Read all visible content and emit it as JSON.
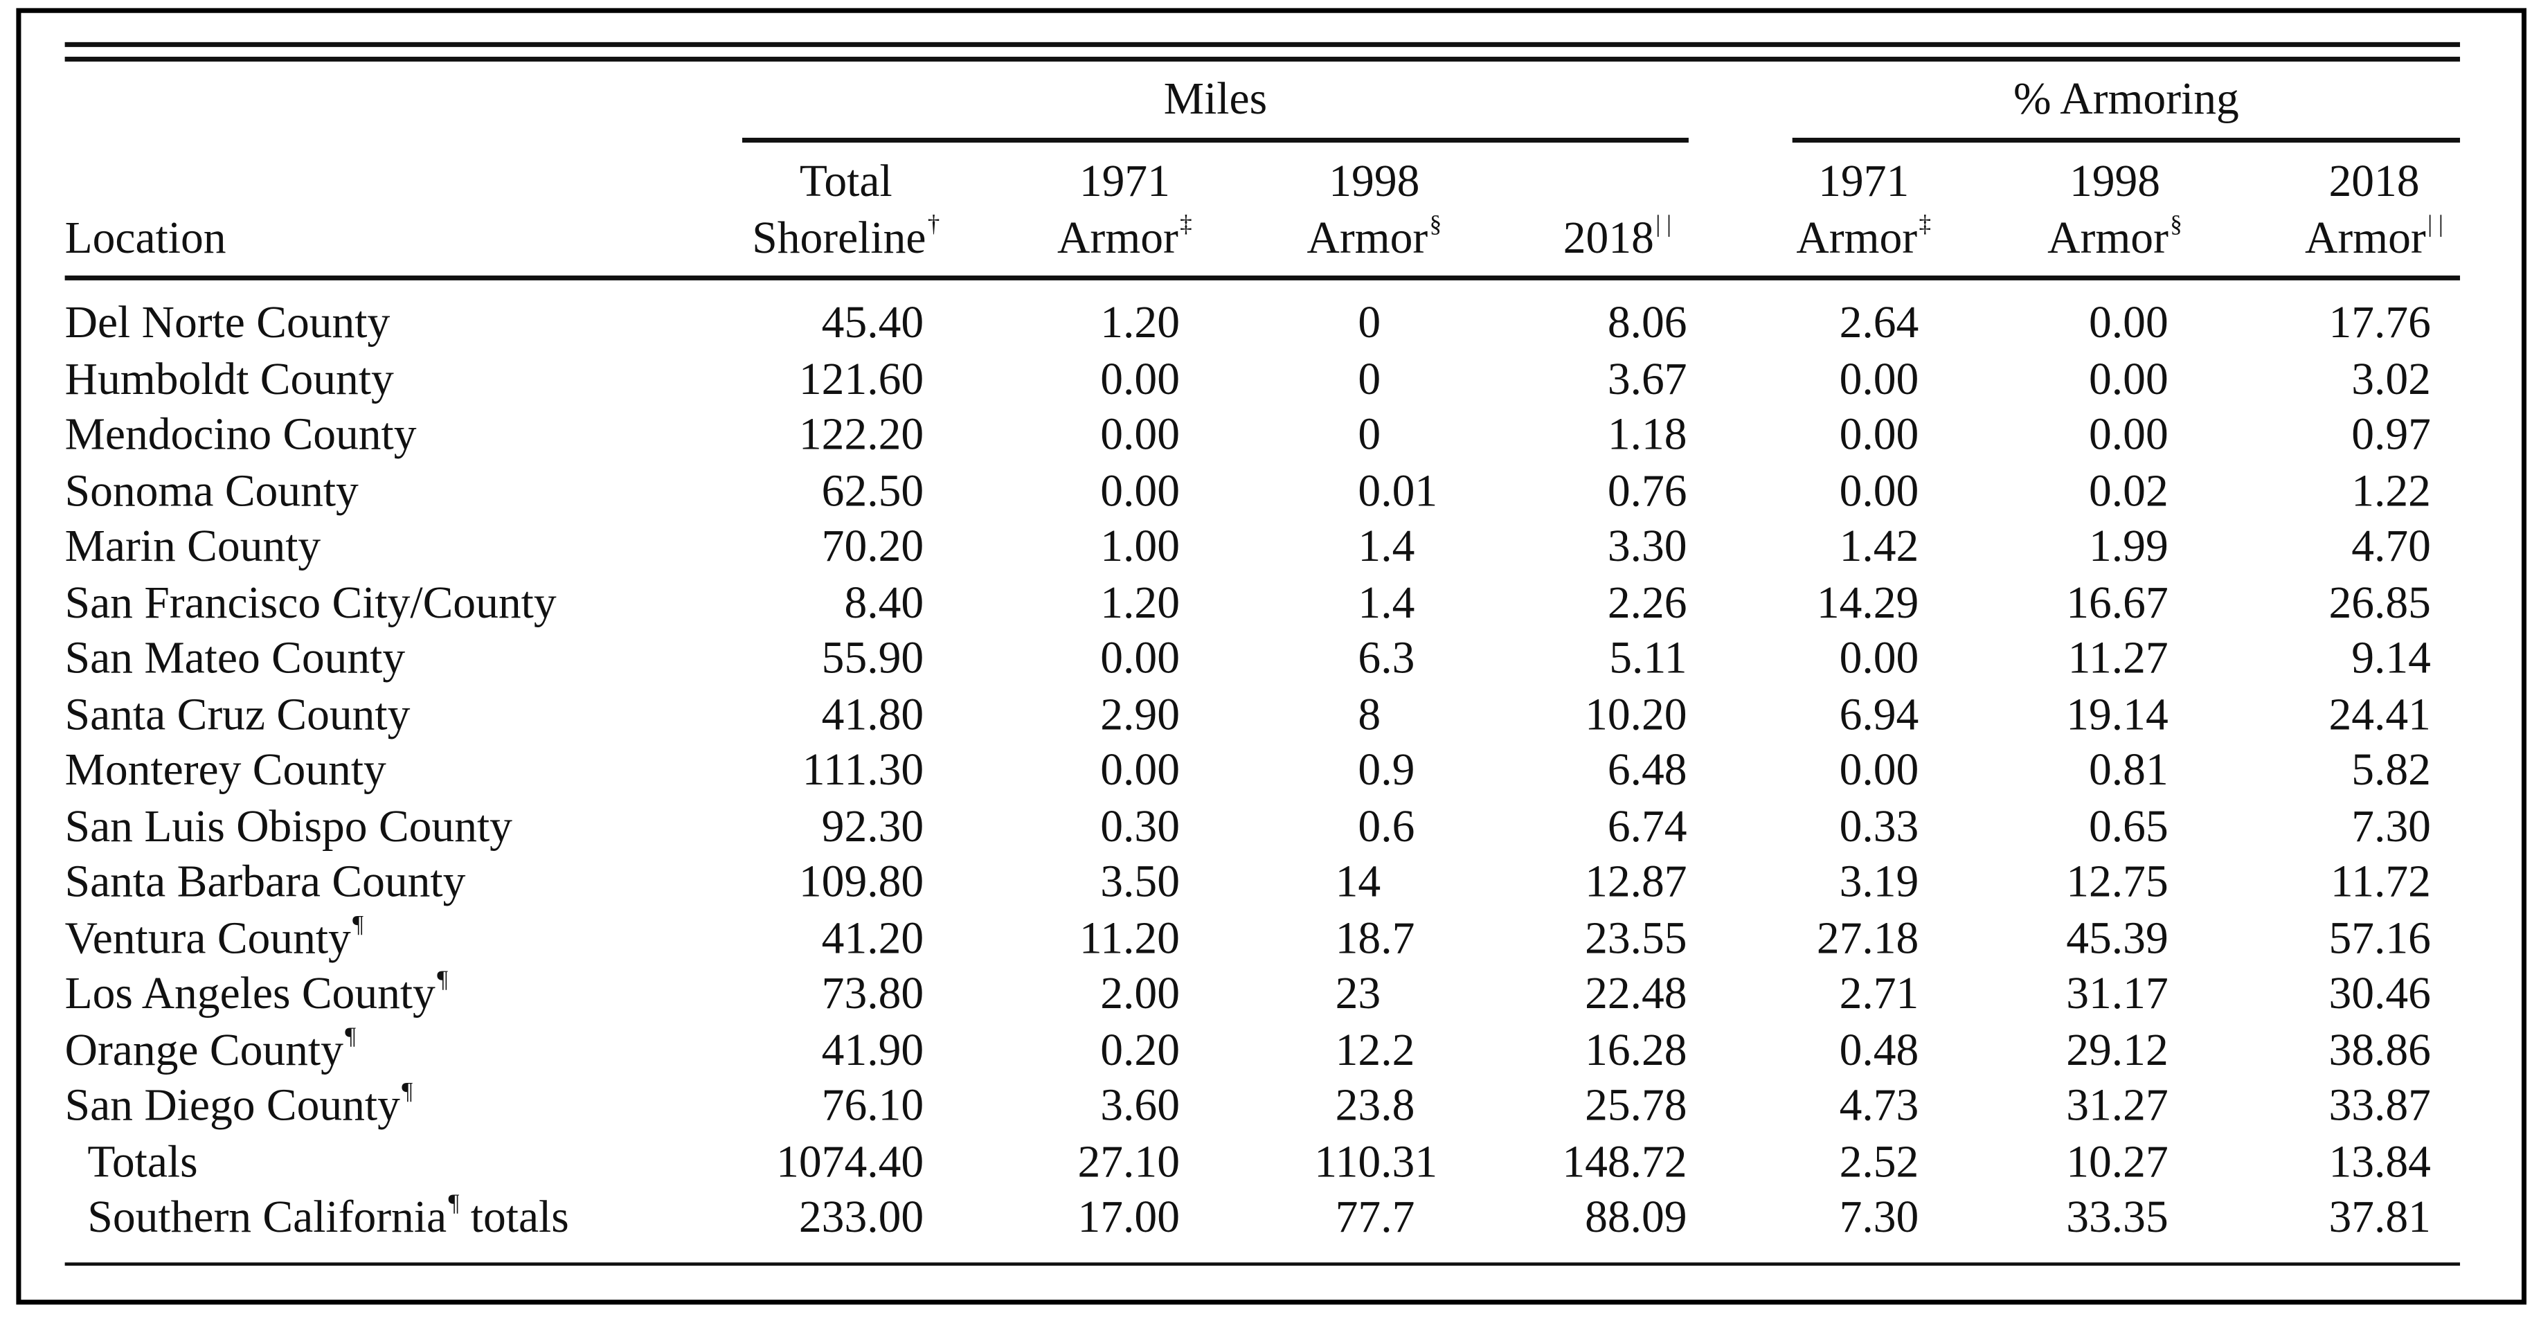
{
  "header": {
    "group_miles": "Miles",
    "group_percent": "% Armoring",
    "location_label": "Location",
    "columns": [
      {
        "line1": "Total",
        "line2": "Shoreline",
        "mark": "†"
      },
      {
        "line1": "1971",
        "line2": "Armor",
        "mark": "‡"
      },
      {
        "line1": "1998",
        "line2": "Armor",
        "mark": "§"
      },
      {
        "line1": "",
        "line2": "2018",
        "mark": "| |"
      },
      {
        "line1": "1971",
        "line2": "Armor",
        "mark": "‡"
      },
      {
        "line1": "1998",
        "line2": "Armor",
        "mark": "§"
      },
      {
        "line1": "2018",
        "line2": "Armor",
        "mark": "| |"
      }
    ]
  },
  "rows": [
    {
      "location": "Del Norte County",
      "mark": "",
      "values": [
        "45.40",
        "1.20",
        "0",
        "8.06",
        "2.64",
        "0.00",
        "17.76"
      ]
    },
    {
      "location": "Humboldt County",
      "mark": "",
      "values": [
        "121.60",
        "0.00",
        "0",
        "3.67",
        "0.00",
        "0.00",
        "3.02"
      ]
    },
    {
      "location": "Mendocino County",
      "mark": "",
      "values": [
        "122.20",
        "0.00",
        "0",
        "1.18",
        "0.00",
        "0.00",
        "0.97"
      ]
    },
    {
      "location": "Sonoma County",
      "mark": "",
      "values": [
        "62.50",
        "0.00",
        "0.01",
        "0.76",
        "0.00",
        "0.02",
        "1.22"
      ]
    },
    {
      "location": "Marin County",
      "mark": "",
      "values": [
        "70.20",
        "1.00",
        "1.4",
        "3.30",
        "1.42",
        "1.99",
        "4.70"
      ]
    },
    {
      "location": "San Francisco City/County",
      "mark": "",
      "values": [
        "8.40",
        "1.20",
        "1.4",
        "2.26",
        "14.29",
        "16.67",
        "26.85"
      ]
    },
    {
      "location": "San Mateo County",
      "mark": "",
      "values": [
        "55.90",
        "0.00",
        "6.3",
        "5.11",
        "0.00",
        "11.27",
        "9.14"
      ]
    },
    {
      "location": "Santa Cruz County",
      "mark": "",
      "values": [
        "41.80",
        "2.90",
        "8",
        "10.20",
        "6.94",
        "19.14",
        "24.41"
      ]
    },
    {
      "location": "Monterey County",
      "mark": "",
      "values": [
        "111.30",
        "0.00",
        "0.9",
        "6.48",
        "0.00",
        "0.81",
        "5.82"
      ]
    },
    {
      "location": "San Luis Obispo County",
      "mark": "",
      "values": [
        "92.30",
        "0.30",
        "0.6",
        "6.74",
        "0.33",
        "0.65",
        "7.30"
      ]
    },
    {
      "location": "Santa Barbara County",
      "mark": "",
      "values": [
        "109.80",
        "3.50",
        "14",
        "12.87",
        "3.19",
        "12.75",
        "11.72"
      ]
    },
    {
      "location": "Ventura County",
      "mark": "¶",
      "values": [
        "41.20",
        "11.20",
        "18.7",
        "23.55",
        "27.18",
        "45.39",
        "57.16"
      ]
    },
    {
      "location": "Los Angeles County",
      "mark": "¶",
      "values": [
        "73.80",
        "2.00",
        "23",
        "22.48",
        "2.71",
        "31.17",
        "30.46"
      ]
    },
    {
      "location": "Orange County",
      "mark": "¶",
      "values": [
        "41.90",
        "0.20",
        "12.2",
        "16.28",
        "0.48",
        "29.12",
        "38.86"
      ]
    },
    {
      "location": "San Diego County",
      "mark": "¶",
      "values": [
        "76.10",
        "3.60",
        "23.8",
        "25.78",
        "4.73",
        "31.27",
        "33.87"
      ]
    },
    {
      "location": "Totals",
      "mark": "",
      "indent": true,
      "values": [
        "1074.40",
        "27.10",
        "110.31",
        "148.72",
        "2.52",
        "10.27",
        "13.84"
      ]
    },
    {
      "location": "Southern California",
      "mark": "¶",
      "suffix": " totals",
      "indent": true,
      "values": [
        "233.00",
        "17.00",
        "77.7",
        "88.09",
        "7.30",
        "33.35",
        "37.81"
      ]
    }
  ]
}
